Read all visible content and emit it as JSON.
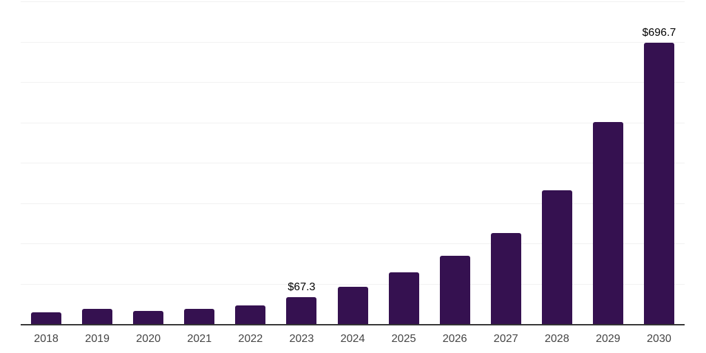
{
  "chart": {
    "background_color": "#ffffff",
    "bar_color": "#351150",
    "axis_line_color": "#333333",
    "gridline_color": "#f1f1f1",
    "tick_label_color": "#444444",
    "value_label_color": "#000000"
  },
  "chart_data": {
    "type": "bar",
    "title": "",
    "xlabel": "",
    "ylabel": "",
    "categories": [
      "2018",
      "2019",
      "2020",
      "2021",
      "2022",
      "2023",
      "2024",
      "2025",
      "2026",
      "2027",
      "2028",
      "2029",
      "2030"
    ],
    "values": [
      29.5,
      37.0,
      32.0,
      38.0,
      45.5,
      67.3,
      92.5,
      128.5,
      170.0,
      225.0,
      332.0,
      501.0,
      696.7
    ],
    "data_labels": [
      "",
      "",
      "",
      "",
      "",
      "$67.3",
      "",
      "",
      "",
      "",
      "",
      "",
      "$696.7"
    ],
    "ylim": [
      0,
      800
    ],
    "gridline_step": 100,
    "grid": "horizontal-only",
    "y_axis_tick_labels_visible": false,
    "legend": "none"
  }
}
